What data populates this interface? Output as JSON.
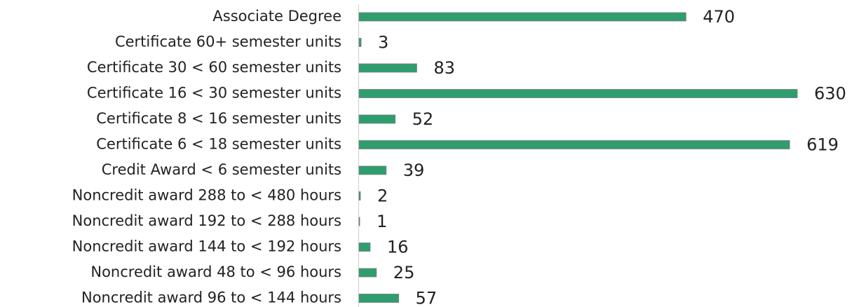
{
  "chart_data": {
    "type": "bar",
    "orientation": "horizontal",
    "color": "#2e9e6e",
    "categories": [
      "Associate Degree",
      "Certificate 60+ semester units",
      "Certificate 30 < 60 semester units",
      "Certificate 16 < 30 semester units",
      "Certificate 8 < 16 semester units",
      "Certificate 6 < 18 semester units",
      "Credit Award < 6 semester units",
      "Noncredit award 288 to < 480 hours",
      "Noncredit award 192 to < 288 hours",
      "Noncredit award 144 to < 192 hours",
      "Noncredit award 48 to < 96 hours",
      "Noncredit award 96 to < 144 hours"
    ],
    "values": [
      470,
      3,
      83,
      630,
      52,
      619,
      39,
      2,
      1,
      16,
      25,
      57
    ]
  }
}
